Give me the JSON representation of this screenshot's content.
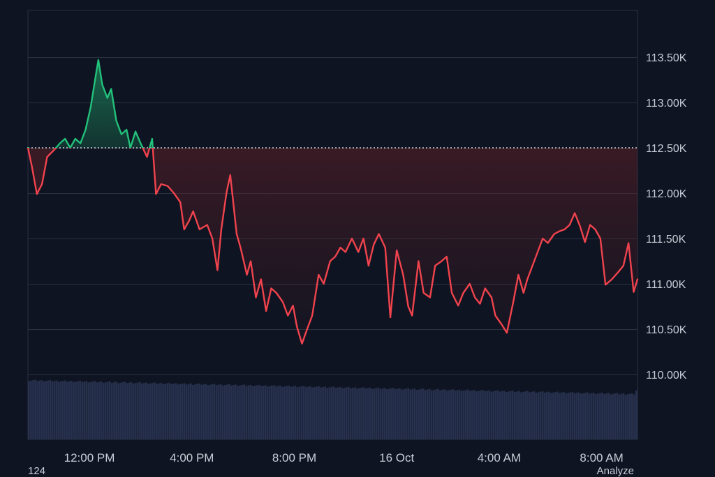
{
  "footer": {
    "left_text": "124",
    "right_text": "Analyze"
  },
  "colors": {
    "background": "#0e1421",
    "grid": "#2a3142",
    "up": "#22c07a",
    "down": "#f0434d",
    "up_fill": "#1a6e4f",
    "down_fill": "#5a1f27",
    "volume": "#27304d",
    "baseline": "#c9ced8"
  },
  "chart_data": {
    "type": "line",
    "baseline_value": 112500,
    "ylim": [
      109300,
      113900
    ],
    "y_ticks": [
      {
        "value": 113500,
        "label": "113.50K"
      },
      {
        "value": 113000,
        "label": "113.00K"
      },
      {
        "value": 112500,
        "label": "112.50K"
      },
      {
        "value": 112000,
        "label": "112.00K"
      },
      {
        "value": 111500,
        "label": "111.50K"
      },
      {
        "value": 111000,
        "label": "111.00K"
      },
      {
        "value": 110500,
        "label": "110.50K"
      },
      {
        "value": 110000,
        "label": "110.00K"
      }
    ],
    "x_ticks": [
      {
        "value": 12.0,
        "label": "12:00 PM"
      },
      {
        "value": 16.0,
        "label": "4:00 PM"
      },
      {
        "value": 20.0,
        "label": "8:00 PM"
      },
      {
        "value": 24.0,
        "label": "16 Oct"
      },
      {
        "value": 28.0,
        "label": "4:00 AM"
      },
      {
        "value": 32.0,
        "label": "8:00 AM"
      }
    ],
    "xlim": [
      9.6,
      33.4
    ],
    "x_unit": "hour of day (15 Oct start); values > 24 are 16 Oct",
    "series": [
      {
        "points": [
          [
            9.6,
            112500
          ],
          [
            9.75,
            112300
          ],
          [
            9.95,
            111990
          ],
          [
            10.15,
            112100
          ],
          [
            10.35,
            112400
          ],
          [
            10.6,
            112470
          ],
          [
            10.85,
            112550
          ],
          [
            11.05,
            112600
          ],
          [
            11.25,
            112500
          ],
          [
            11.45,
            112600
          ],
          [
            11.65,
            112550
          ],
          [
            11.85,
            112700
          ],
          [
            12.05,
            112950
          ],
          [
            12.25,
            113300
          ],
          [
            12.35,
            113470
          ],
          [
            12.5,
            113200
          ],
          [
            12.7,
            113050
          ],
          [
            12.85,
            113150
          ],
          [
            13.05,
            112800
          ],
          [
            13.25,
            112650
          ],
          [
            13.45,
            112700
          ],
          [
            13.6,
            112500
          ],
          [
            13.8,
            112680
          ],
          [
            14.0,
            112550
          ],
          [
            14.25,
            112400
          ],
          [
            14.45,
            112600
          ],
          [
            14.6,
            111990
          ],
          [
            14.8,
            112100
          ],
          [
            15.05,
            112080
          ],
          [
            15.3,
            112000
          ],
          [
            15.55,
            111900
          ],
          [
            15.7,
            111600
          ],
          [
            15.9,
            111700
          ],
          [
            16.05,
            111800
          ],
          [
            16.3,
            111600
          ],
          [
            16.6,
            111650
          ],
          [
            16.8,
            111500
          ],
          [
            17.0,
            111150
          ],
          [
            17.15,
            111600
          ],
          [
            17.35,
            112000
          ],
          [
            17.5,
            112200
          ],
          [
            17.75,
            111550
          ],
          [
            17.9,
            111400
          ],
          [
            18.15,
            111100
          ],
          [
            18.3,
            111250
          ],
          [
            18.5,
            110850
          ],
          [
            18.7,
            111050
          ],
          [
            18.9,
            110700
          ],
          [
            19.1,
            110950
          ],
          [
            19.3,
            110900
          ],
          [
            19.55,
            110800
          ],
          [
            19.75,
            110650
          ],
          [
            19.95,
            110760
          ],
          [
            20.1,
            110530
          ],
          [
            20.3,
            110340
          ],
          [
            20.5,
            110500
          ],
          [
            20.7,
            110650
          ],
          [
            20.95,
            111100
          ],
          [
            21.15,
            111000
          ],
          [
            21.4,
            111250
          ],
          [
            21.6,
            111300
          ],
          [
            21.8,
            111400
          ],
          [
            22.0,
            111350
          ],
          [
            22.25,
            111500
          ],
          [
            22.5,
            111350
          ],
          [
            22.7,
            111500
          ],
          [
            22.9,
            111200
          ],
          [
            23.1,
            111430
          ],
          [
            23.3,
            111550
          ],
          [
            23.55,
            111400
          ],
          [
            23.75,
            110630
          ],
          [
            24.0,
            111370
          ],
          [
            24.25,
            111100
          ],
          [
            24.45,
            110750
          ],
          [
            24.6,
            110650
          ],
          [
            24.85,
            111250
          ],
          [
            25.05,
            110900
          ],
          [
            25.3,
            110850
          ],
          [
            25.5,
            111200
          ],
          [
            25.75,
            111250
          ],
          [
            25.95,
            111300
          ],
          [
            26.15,
            110900
          ],
          [
            26.4,
            110760
          ],
          [
            26.6,
            110900
          ],
          [
            26.85,
            111000
          ],
          [
            27.05,
            110850
          ],
          [
            27.25,
            110780
          ],
          [
            27.45,
            110950
          ],
          [
            27.7,
            110850
          ],
          [
            27.85,
            110650
          ],
          [
            28.1,
            110550
          ],
          [
            28.3,
            110460
          ],
          [
            28.55,
            110800
          ],
          [
            28.75,
            111100
          ],
          [
            28.95,
            110900
          ],
          [
            29.1,
            111050
          ],
          [
            29.3,
            111200
          ],
          [
            29.5,
            111350
          ],
          [
            29.7,
            111500
          ],
          [
            29.9,
            111450
          ],
          [
            30.15,
            111550
          ],
          [
            30.35,
            111580
          ],
          [
            30.55,
            111600
          ],
          [
            30.75,
            111650
          ],
          [
            30.95,
            111780
          ],
          [
            31.15,
            111640
          ],
          [
            31.35,
            111460
          ],
          [
            31.55,
            111650
          ],
          [
            31.75,
            111600
          ],
          [
            31.95,
            111500
          ],
          [
            32.15,
            110990
          ],
          [
            32.4,
            111050
          ],
          [
            32.65,
            111130
          ],
          [
            32.85,
            111200
          ],
          [
            33.05,
            111450
          ],
          [
            33.25,
            110910
          ],
          [
            33.4,
            111050
          ]
        ]
      }
    ],
    "volume_bars": {
      "count": 286,
      "start_level": 0.94,
      "end_level": 0.72,
      "last_level": 0.78
    }
  }
}
